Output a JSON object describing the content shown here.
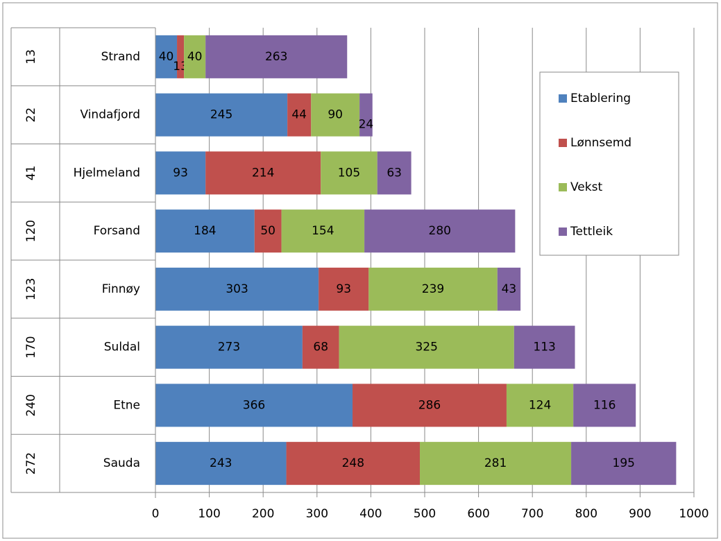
{
  "chart_data": {
    "type": "bar",
    "orientation": "horizontal",
    "stacked": true,
    "categories": [
      "Strand",
      "Vindafjord",
      "Hjelmeland",
      "Forsand",
      "Finnøy",
      "Suldal",
      "Etne",
      "Sauda"
    ],
    "ranks": [
      "13",
      "22",
      "41",
      "120",
      "123",
      "170",
      "240",
      "272"
    ],
    "series": [
      {
        "name": "Etablering",
        "color": "#4f81bd",
        "values": [
          40,
          245,
          93,
          184,
          303,
          273,
          366,
          243
        ]
      },
      {
        "name": "Lønnsemd",
        "color": "#c0504d",
        "values": [
          13,
          44,
          214,
          50,
          93,
          68,
          286,
          248
        ]
      },
      {
        "name": "Vekst",
        "color": "#9bbb59",
        "values": [
          40,
          90,
          105,
          154,
          239,
          325,
          124,
          281
        ]
      },
      {
        "name": "Tettleik",
        "color": "#8064a2",
        "values": [
          263,
          24,
          63,
          280,
          43,
          113,
          116,
          195
        ]
      }
    ],
    "xlim": [
      0,
      1000
    ],
    "xticks": [
      "0",
      "100",
      "200",
      "300",
      "400",
      "500",
      "600",
      "700",
      "800",
      "900",
      "1000"
    ],
    "grid": true,
    "legend_position": "right"
  }
}
